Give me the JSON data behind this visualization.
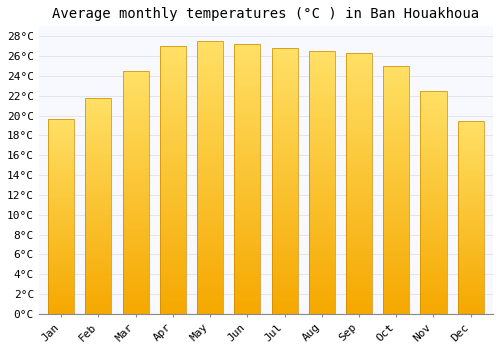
{
  "title": "Average monthly temperatures (°C ) in Ban Houakhoua",
  "months": [
    "Jan",
    "Feb",
    "Mar",
    "Apr",
    "May",
    "Jun",
    "Jul",
    "Aug",
    "Sep",
    "Oct",
    "Nov",
    "Dec"
  ],
  "temperatures": [
    19.7,
    21.8,
    24.5,
    27.0,
    27.5,
    27.2,
    26.8,
    26.5,
    26.3,
    25.0,
    22.5,
    19.5
  ],
  "bar_color_bottom": "#F5A800",
  "bar_color_top": "#FFE066",
  "bar_edge_color": "#CC8800",
  "ylim": [
    0,
    29
  ],
  "ytick_step": 2,
  "background_color": "#FFFFFF",
  "plot_bg_color": "#F8F8FF",
  "grid_color": "#DDDDDD",
  "title_fontsize": 10,
  "tick_fontsize": 8,
  "font_family": "monospace"
}
